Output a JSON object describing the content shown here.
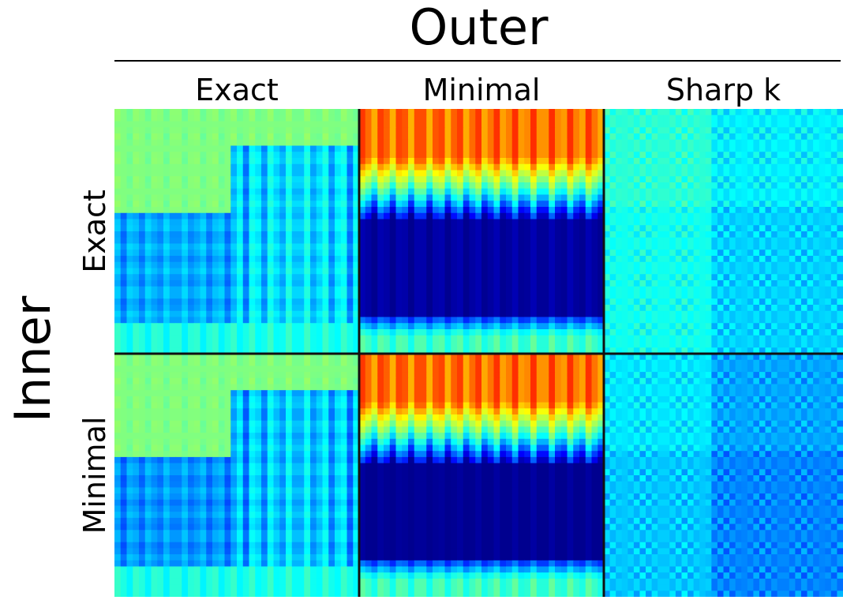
{
  "chart_data": {
    "type": "heatmap",
    "title": "Outer",
    "xlabel": "Outer",
    "ylabel": "Inner",
    "columns": [
      "Exact",
      "Minimal",
      "Sharp k"
    ],
    "rows": [
      "Exact",
      "Minimal"
    ],
    "colormap": "jet",
    "colormap_stops": [
      "#00008f",
      "#0000ff",
      "#00ffff",
      "#80ff80",
      "#ffff00",
      "#ff0000",
      "#800000"
    ],
    "grid": false,
    "panels": [
      {
        "row": "Exact",
        "column": "Exact",
        "mean_level": 0.42,
        "lower_band_level": 0.2,
        "pattern": "stepped"
      },
      {
        "row": "Exact",
        "column": "Minimal",
        "mean_level": 0.5,
        "upper_band_level": 0.88,
        "lower_band_level": 0.02,
        "pattern": "banded"
      },
      {
        "row": "Exact",
        "column": "Sharp k",
        "mean_level": 0.4,
        "pattern": "speckled"
      },
      {
        "row": "Minimal",
        "column": "Exact",
        "mean_level": 0.42,
        "lower_band_level": 0.18,
        "pattern": "stepped"
      },
      {
        "row": "Minimal",
        "column": "Minimal",
        "mean_level": 0.5,
        "upper_band_level": 0.88,
        "lower_band_level": 0.0,
        "pattern": "banded"
      },
      {
        "row": "Minimal",
        "column": "Sharp k",
        "mean_level": 0.33,
        "pattern": "speckled"
      }
    ]
  }
}
